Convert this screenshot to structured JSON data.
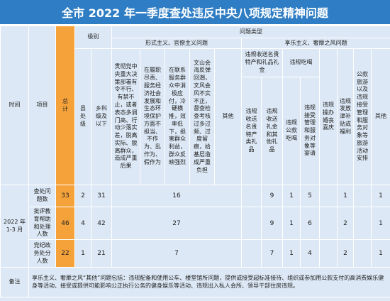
{
  "header": {
    "title": "全市 2022 年一季度查处违反中央八项规定精神问题"
  },
  "table": {
    "header": {
      "time": "时间",
      "item": "项目",
      "total": "总计",
      "level": "级别",
      "levels": [
        "县处级",
        "乡科级及以下"
      ],
      "problem_type": "问题类型",
      "formalism": {
        "title": "形式主义、官僚主义问题",
        "columns": [
          "贯彻党中央重大决策部署有令不行、有禁不止，或者表态多调门高、行动少落实差，脱离实际、脱离群众，造成严重后果",
          "在履职尽责、服务经济社会发展和生态环境保护方面不担当、不作为、乱作为、假作为",
          "在联系服务群众中消极应付，冷硬横推，效率低下，损害群众利益，群众反映强烈",
          "文山会海反弹回潮，文风会风不实不正，督查检查考核过多过频、过度留痕，给基层造成严重负担",
          "其他"
        ]
      },
      "hedonism": {
        "title": "享乐主义、奢靡之风问题",
        "groups": [
          {
            "title": "违规收送名贵特产和礼品礼金",
            "columns": [
              "违规收送名贵特产类礼品",
              "违规收送礼金和其他礼品"
            ]
          },
          {
            "title": "违规吃喝",
            "columns": [
              "违规公款吃喝",
              "违规接受管理和服务对象等宴请"
            ]
          }
        ],
        "columns": [
          "违规操办婚丧喜庆",
          "违规发放津补贴或福利",
          "公款旅游以及违规接受管理和服务对象等旅游活动安排",
          "其他"
        ]
      }
    },
    "period": "2022 年 1-3 月",
    "rows": [
      {
        "label": "查处问题数",
        "total": 33,
        "county": 2,
        "township": 31,
        "formalism": 16,
        "hedonism": [
          null,
          9,
          1,
          5,
          null,
          1,
          null,
          1
        ]
      },
      {
        "label": "批评教育帮助和处理人数",
        "total": 46,
        "county": 4,
        "township": 42,
        "formalism": 27,
        "hedonism": [
          null,
          9,
          1,
          6,
          null,
          2,
          null,
          1
        ]
      },
      {
        "label": "党纪政务处分人数",
        "total": 22,
        "county": 1,
        "township": 21,
        "formalism": 7,
        "hedonism": [
          null,
          7,
          1,
          4,
          null,
          2,
          null,
          1
        ]
      }
    ],
    "note_label": "备注",
    "note": "享乐主义、奢靡之风“其他”问题包括：违规配备和使用公车、楼堂馆所问题，提供或接受超标准接待、组织或参加用公款支付的高消费娱乐健身等活动、接受或提供可能影响公正执行公务的健身娱乐等活动、违规出入私人会所、领导干部住房违规。"
  }
}
